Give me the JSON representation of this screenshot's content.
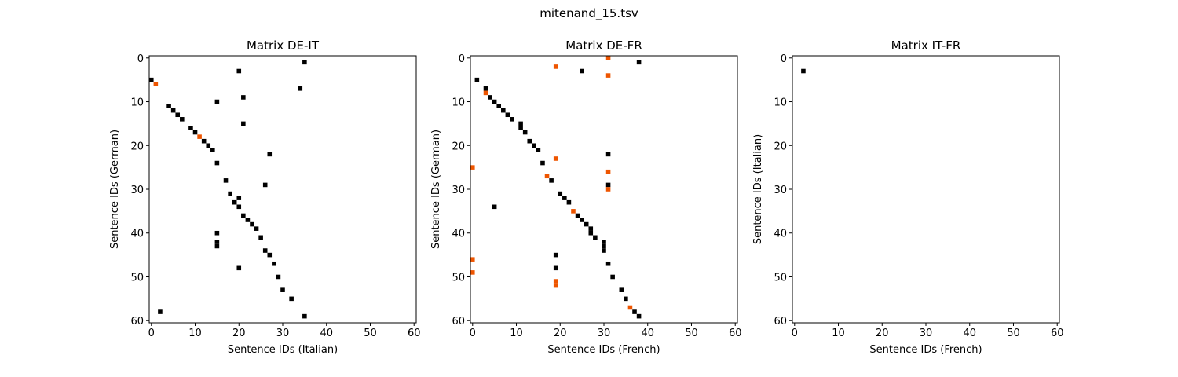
{
  "figure": {
    "suptitle": "mitenand_15.tsv"
  },
  "colors": {
    "black": "#000000",
    "orange": "#ee5500",
    "frame": "#000000"
  },
  "chart_data": [
    {
      "type": "heatmap",
      "title": "Matrix DE-IT",
      "xlabel": "Sentence IDs (Italian)",
      "ylabel": "Sentence IDs (German)",
      "xlim": [
        0,
        60
      ],
      "ylim": [
        60,
        0
      ],
      "xticks": [
        "0",
        "10",
        "20",
        "30",
        "40",
        "50",
        "60"
      ],
      "yticks": [
        "0",
        "10",
        "20",
        "30",
        "40",
        "50",
        "60"
      ],
      "grid": false,
      "points": [
        {
          "x": 35,
          "y": 1,
          "c": "black"
        },
        {
          "x": 20,
          "y": 3,
          "c": "black"
        },
        {
          "x": 0,
          "y": 5,
          "c": "black"
        },
        {
          "x": 1,
          "y": 6,
          "c": "orange"
        },
        {
          "x": 34,
          "y": 7,
          "c": "black"
        },
        {
          "x": 21,
          "y": 9,
          "c": "black"
        },
        {
          "x": 15,
          "y": 10,
          "c": "black"
        },
        {
          "x": 4,
          "y": 11,
          "c": "black"
        },
        {
          "x": 5,
          "y": 12,
          "c": "black"
        },
        {
          "x": 6,
          "y": 13,
          "c": "black"
        },
        {
          "x": 7,
          "y": 14,
          "c": "black"
        },
        {
          "x": 21,
          "y": 15,
          "c": "black"
        },
        {
          "x": 9,
          "y": 16,
          "c": "black"
        },
        {
          "x": 10,
          "y": 17,
          "c": "black"
        },
        {
          "x": 11,
          "y": 18,
          "c": "orange"
        },
        {
          "x": 12,
          "y": 19,
          "c": "black"
        },
        {
          "x": 13,
          "y": 20,
          "c": "black"
        },
        {
          "x": 14,
          "y": 21,
          "c": "black"
        },
        {
          "x": 27,
          "y": 22,
          "c": "black"
        },
        {
          "x": 15,
          "y": 24,
          "c": "black"
        },
        {
          "x": 17,
          "y": 28,
          "c": "black"
        },
        {
          "x": 26,
          "y": 29,
          "c": "black"
        },
        {
          "x": 18,
          "y": 31,
          "c": "black"
        },
        {
          "x": 20,
          "y": 32,
          "c": "black"
        },
        {
          "x": 19,
          "y": 33,
          "c": "black"
        },
        {
          "x": 20,
          "y": 34,
          "c": "black"
        },
        {
          "x": 21,
          "y": 36,
          "c": "black"
        },
        {
          "x": 22,
          "y": 37,
          "c": "black"
        },
        {
          "x": 23,
          "y": 38,
          "c": "black"
        },
        {
          "x": 24,
          "y": 39,
          "c": "black"
        },
        {
          "x": 15,
          "y": 40,
          "c": "black"
        },
        {
          "x": 25,
          "y": 41,
          "c": "black"
        },
        {
          "x": 15,
          "y": 42,
          "c": "black"
        },
        {
          "x": 15,
          "y": 43,
          "c": "black"
        },
        {
          "x": 26,
          "y": 44,
          "c": "black"
        },
        {
          "x": 27,
          "y": 45,
          "c": "black"
        },
        {
          "x": 28,
          "y": 47,
          "c": "black"
        },
        {
          "x": 20,
          "y": 48,
          "c": "black"
        },
        {
          "x": 29,
          "y": 50,
          "c": "black"
        },
        {
          "x": 30,
          "y": 53,
          "c": "black"
        },
        {
          "x": 32,
          "y": 55,
          "c": "black"
        },
        {
          "x": 2,
          "y": 58,
          "c": "black"
        },
        {
          "x": 35,
          "y": 59,
          "c": "black"
        }
      ]
    },
    {
      "type": "heatmap",
      "title": "Matrix DE-FR",
      "xlabel": "Sentence IDs (French)",
      "ylabel": "Sentence IDs (German)",
      "xlim": [
        0,
        60
      ],
      "ylim": [
        60,
        0
      ],
      "xticks": [
        "0",
        "10",
        "20",
        "30",
        "40",
        "50",
        "60"
      ],
      "yticks": [
        "0",
        "10",
        "20",
        "30",
        "40",
        "50",
        "60"
      ],
      "grid": false,
      "points": [
        {
          "x": 31,
          "y": 0,
          "c": "orange"
        },
        {
          "x": 38,
          "y": 1,
          "c": "black"
        },
        {
          "x": 19,
          "y": 2,
          "c": "orange"
        },
        {
          "x": 25,
          "y": 3,
          "c": "black"
        },
        {
          "x": 31,
          "y": 4,
          "c": "orange"
        },
        {
          "x": 1,
          "y": 5,
          "c": "black"
        },
        {
          "x": 3,
          "y": 7,
          "c": "black"
        },
        {
          "x": 3,
          "y": 8,
          "c": "orange"
        },
        {
          "x": 4,
          "y": 9,
          "c": "black"
        },
        {
          "x": 5,
          "y": 10,
          "c": "black"
        },
        {
          "x": 6,
          "y": 11,
          "c": "black"
        },
        {
          "x": 7,
          "y": 12,
          "c": "black"
        },
        {
          "x": 8,
          "y": 13,
          "c": "black"
        },
        {
          "x": 9,
          "y": 14,
          "c": "black"
        },
        {
          "x": 11,
          "y": 15,
          "c": "black"
        },
        {
          "x": 11,
          "y": 16,
          "c": "black"
        },
        {
          "x": 12,
          "y": 17,
          "c": "black"
        },
        {
          "x": 13,
          "y": 19,
          "c": "black"
        },
        {
          "x": 14,
          "y": 20,
          "c": "black"
        },
        {
          "x": 15,
          "y": 21,
          "c": "black"
        },
        {
          "x": 31,
          "y": 22,
          "c": "black"
        },
        {
          "x": 19,
          "y": 23,
          "c": "orange"
        },
        {
          "x": 16,
          "y": 24,
          "c": "black"
        },
        {
          "x": 0,
          "y": 25,
          "c": "orange"
        },
        {
          "x": 31,
          "y": 26,
          "c": "orange"
        },
        {
          "x": 17,
          "y": 27,
          "c": "orange"
        },
        {
          "x": 18,
          "y": 28,
          "c": "black"
        },
        {
          "x": 31,
          "y": 29,
          "c": "black"
        },
        {
          "x": 31,
          "y": 30,
          "c": "orange"
        },
        {
          "x": 20,
          "y": 31,
          "c": "black"
        },
        {
          "x": 21,
          "y": 32,
          "c": "black"
        },
        {
          "x": 22,
          "y": 33,
          "c": "black"
        },
        {
          "x": 5,
          "y": 34,
          "c": "black"
        },
        {
          "x": 23,
          "y": 35,
          "c": "orange"
        },
        {
          "x": 24,
          "y": 36,
          "c": "black"
        },
        {
          "x": 25,
          "y": 37,
          "c": "black"
        },
        {
          "x": 26,
          "y": 38,
          "c": "black"
        },
        {
          "x": 27,
          "y": 39,
          "c": "black"
        },
        {
          "x": 27,
          "y": 40,
          "c": "black"
        },
        {
          "x": 28,
          "y": 41,
          "c": "black"
        },
        {
          "x": 30,
          "y": 42,
          "c": "black"
        },
        {
          "x": 30,
          "y": 43,
          "c": "black"
        },
        {
          "x": 30,
          "y": 44,
          "c": "black"
        },
        {
          "x": 19,
          "y": 45,
          "c": "black"
        },
        {
          "x": 0,
          "y": 46,
          "c": "orange"
        },
        {
          "x": 31,
          "y": 47,
          "c": "black"
        },
        {
          "x": 19,
          "y": 48,
          "c": "black"
        },
        {
          "x": 0,
          "y": 49,
          "c": "orange"
        },
        {
          "x": 32,
          "y": 50,
          "c": "black"
        },
        {
          "x": 19,
          "y": 51,
          "c": "orange"
        },
        {
          "x": 19,
          "y": 52,
          "c": "orange"
        },
        {
          "x": 34,
          "y": 53,
          "c": "black"
        },
        {
          "x": 35,
          "y": 55,
          "c": "black"
        },
        {
          "x": 36,
          "y": 57,
          "c": "orange"
        },
        {
          "x": 37,
          "y": 58,
          "c": "black"
        },
        {
          "x": 38,
          "y": 59,
          "c": "black"
        }
      ]
    },
    {
      "type": "heatmap",
      "title": "Matrix IT-FR",
      "xlabel": "Sentence IDs (French)",
      "ylabel": "Sentence IDs (Italian)",
      "xlim": [
        0,
        60
      ],
      "ylim": [
        60,
        0
      ],
      "xticks": [
        "0",
        "10",
        "20",
        "30",
        "40",
        "50",
        "60"
      ],
      "yticks": [
        "0",
        "10",
        "20",
        "30",
        "40",
        "50",
        "60"
      ],
      "grid": false,
      "points": [
        {
          "x": 2,
          "y": 3,
          "c": "black"
        }
      ]
    }
  ]
}
